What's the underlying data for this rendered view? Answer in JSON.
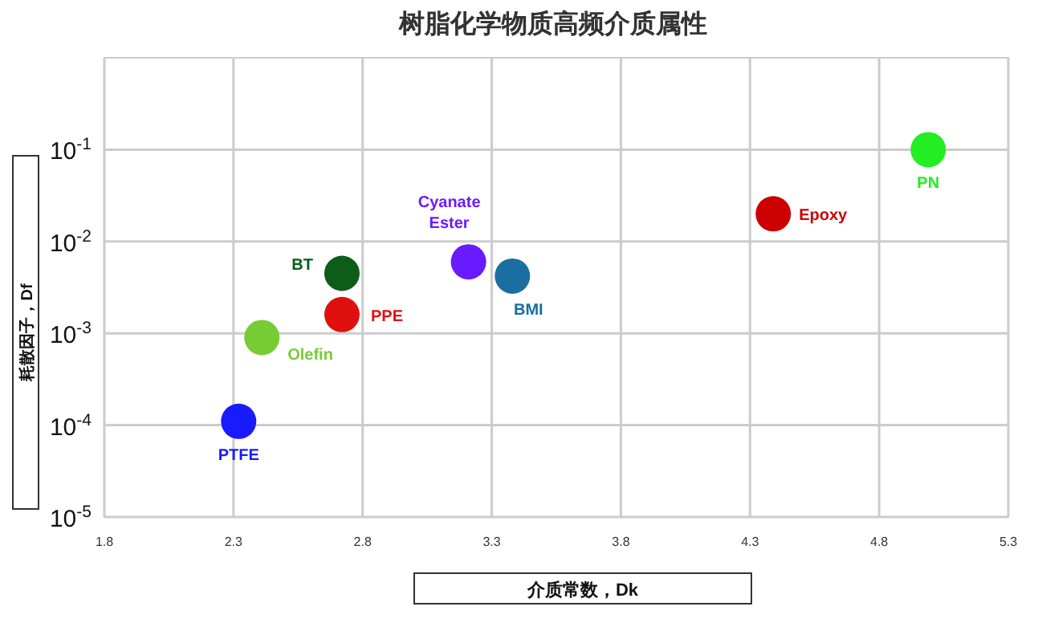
{
  "chart_data": {
    "type": "scatter",
    "title": "树脂化学物质高频介质属性",
    "xlabel": "介质常数，Dk",
    "ylabel": "耗散因子，Df",
    "log": "y",
    "grid": true,
    "marker": "circle",
    "xlim": [
      1.8,
      5.3
    ],
    "xticks": [
      1.8,
      2.3,
      2.8,
      3.3,
      3.8,
      4.3,
      4.8,
      5.3
    ],
    "ylim": [
      1e-05,
      1
    ],
    "yticks": [
      {
        "value": 1e-05,
        "label": "10$^{-5}$"
      },
      {
        "value": 0.0001,
        "label": "10$^{-4}$"
      },
      {
        "value": 0.001,
        "label": "10$^{-3}$"
      },
      {
        "value": 0.01,
        "label": "10$^{-2}$"
      },
      {
        "value": 0.1,
        "label": "10$^{-1}$"
      }
    ],
    "series": [
      {
        "name": "PTFE",
        "color": "#1a1aff",
        "x": [
          2.32
        ],
        "values": [
          0.00011
        ]
      },
      {
        "name": "Olefin",
        "color": "#77cc33",
        "x": [
          2.41
        ],
        "values": [
          0.0009
        ]
      },
      {
        "name": "BT",
        "color": "#0d5c1a",
        "x": [
          2.72
        ],
        "values": [
          0.0045
        ]
      },
      {
        "name": "PPE",
        "color": "#e01010",
        "x": [
          2.72
        ],
        "values": [
          0.0016
        ]
      },
      {
        "name": "Cyanate Ester",
        "color": "#6a1aff",
        "x": [
          3.21
        ],
        "values": [
          0.006
        ]
      },
      {
        "name": "BMI",
        "color": "#1a6fa0",
        "x": [
          3.38
        ],
        "values": [
          0.0042
        ]
      },
      {
        "name": "Epoxy",
        "color": "#cc0000",
        "x": [
          4.39
        ],
        "values": [
          0.02
        ]
      },
      {
        "name": "PN",
        "color": "#22ee22",
        "x": [
          4.99
        ],
        "values": [
          0.1
        ]
      }
    ]
  }
}
